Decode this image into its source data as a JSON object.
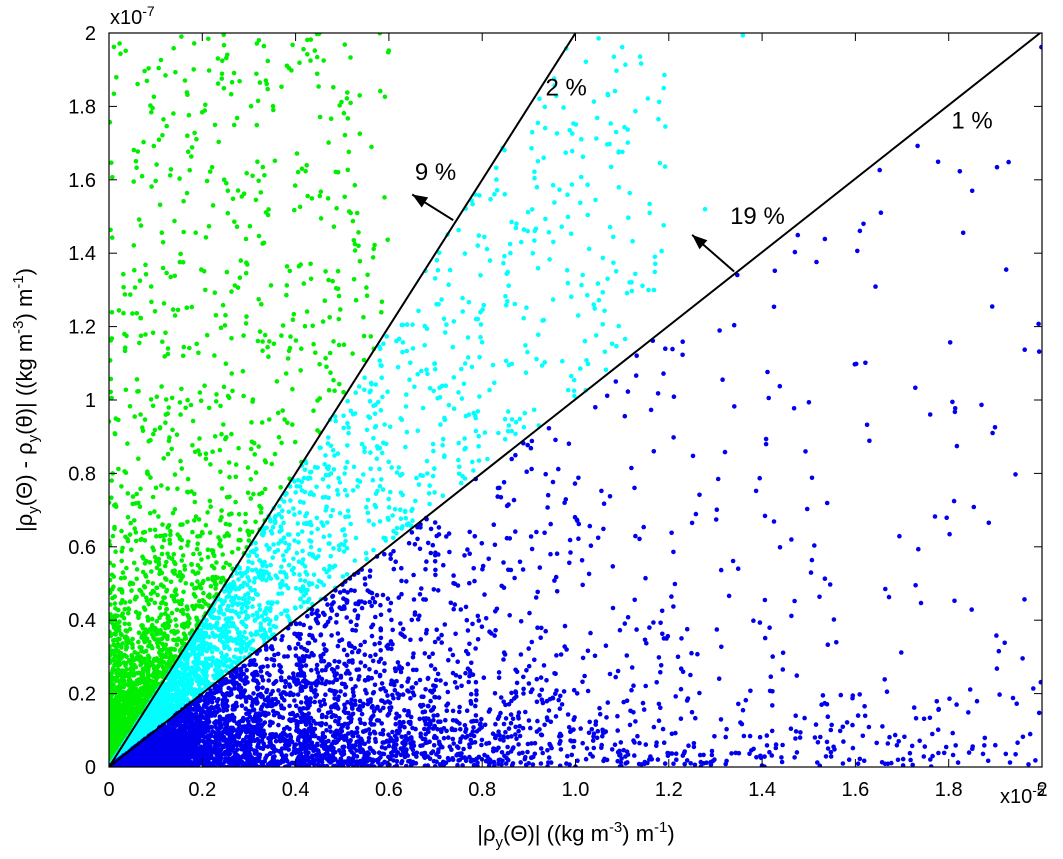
{
  "chart_data": {
    "type": "scatter",
    "title": "",
    "xlabel": "|ρy(Θ)| ((kg m-3) m-1)",
    "ylabel": "|ρy(Θ) - ρy(θ)| ((kg m-3) m-1)",
    "xlabel_parts": {
      "pre": "|ρ",
      "sub": "y",
      "mid": "(Θ)| ((kg m",
      "sup": "-3",
      "post": ") m",
      "sup2": "-1",
      "end": ")"
    },
    "ylabel_parts": {
      "a": "|ρ",
      "sub1": "y",
      "b": "(Θ) - ρ",
      "sub2": "y",
      "c": "(θ)| ((kg m",
      "sup": "-3",
      "d": ") m",
      "sup2": "-1",
      "e": ")"
    },
    "x_multiplier": {
      "base": "x10",
      "exp": "-5"
    },
    "y_multiplier": {
      "base": "x10",
      "exp": "-7"
    },
    "xlim": [
      0,
      2
    ],
    "ylim": [
      0,
      2
    ],
    "xticks": [
      "0",
      "0.2",
      "0.4",
      "0.6",
      "0.8",
      "1.0",
      "1.2",
      "1.4",
      "1.6",
      "1.8",
      "2"
    ],
    "yticks": [
      "0",
      "0.2",
      "0.4",
      "0.6",
      "0.8",
      "1",
      "1.2",
      "1.4",
      "1.6",
      "1.8",
      "2"
    ],
    "grid": false,
    "lines": [
      {
        "from": [
          0,
          0
        ],
        "to": [
          1.996,
          2.0
        ]
      },
      {
        "from": [
          0,
          0
        ],
        "to": [
          1.0,
          2.0
        ]
      }
    ],
    "arrows": [
      {
        "from": [
          1.34,
          1.35
        ],
        "to": [
          1.25,
          1.45
        ]
      },
      {
        "from": [
          0.738,
          1.49
        ],
        "to": [
          0.65,
          1.56
        ]
      }
    ],
    "annotations": [
      {
        "text": "19 %",
        "x": 1.39,
        "y": 1.48
      },
      {
        "text": "9 %",
        "x": 0.7,
        "y": 1.6
      },
      {
        "text": "2 %",
        "x": 0.98,
        "y": 1.83
      },
      {
        "text": "1 %",
        "x": 1.85,
        "y": 1.74
      }
    ],
    "series": [
      {
        "color": "#00ee00",
        "region": "y > 2x",
        "n": 2600
      },
      {
        "color": "#00ffff",
        "region": "x < y < 2x",
        "n": 2600
      },
      {
        "color": "#0000ee",
        "region": "y < x",
        "n": 5200
      }
    ]
  }
}
